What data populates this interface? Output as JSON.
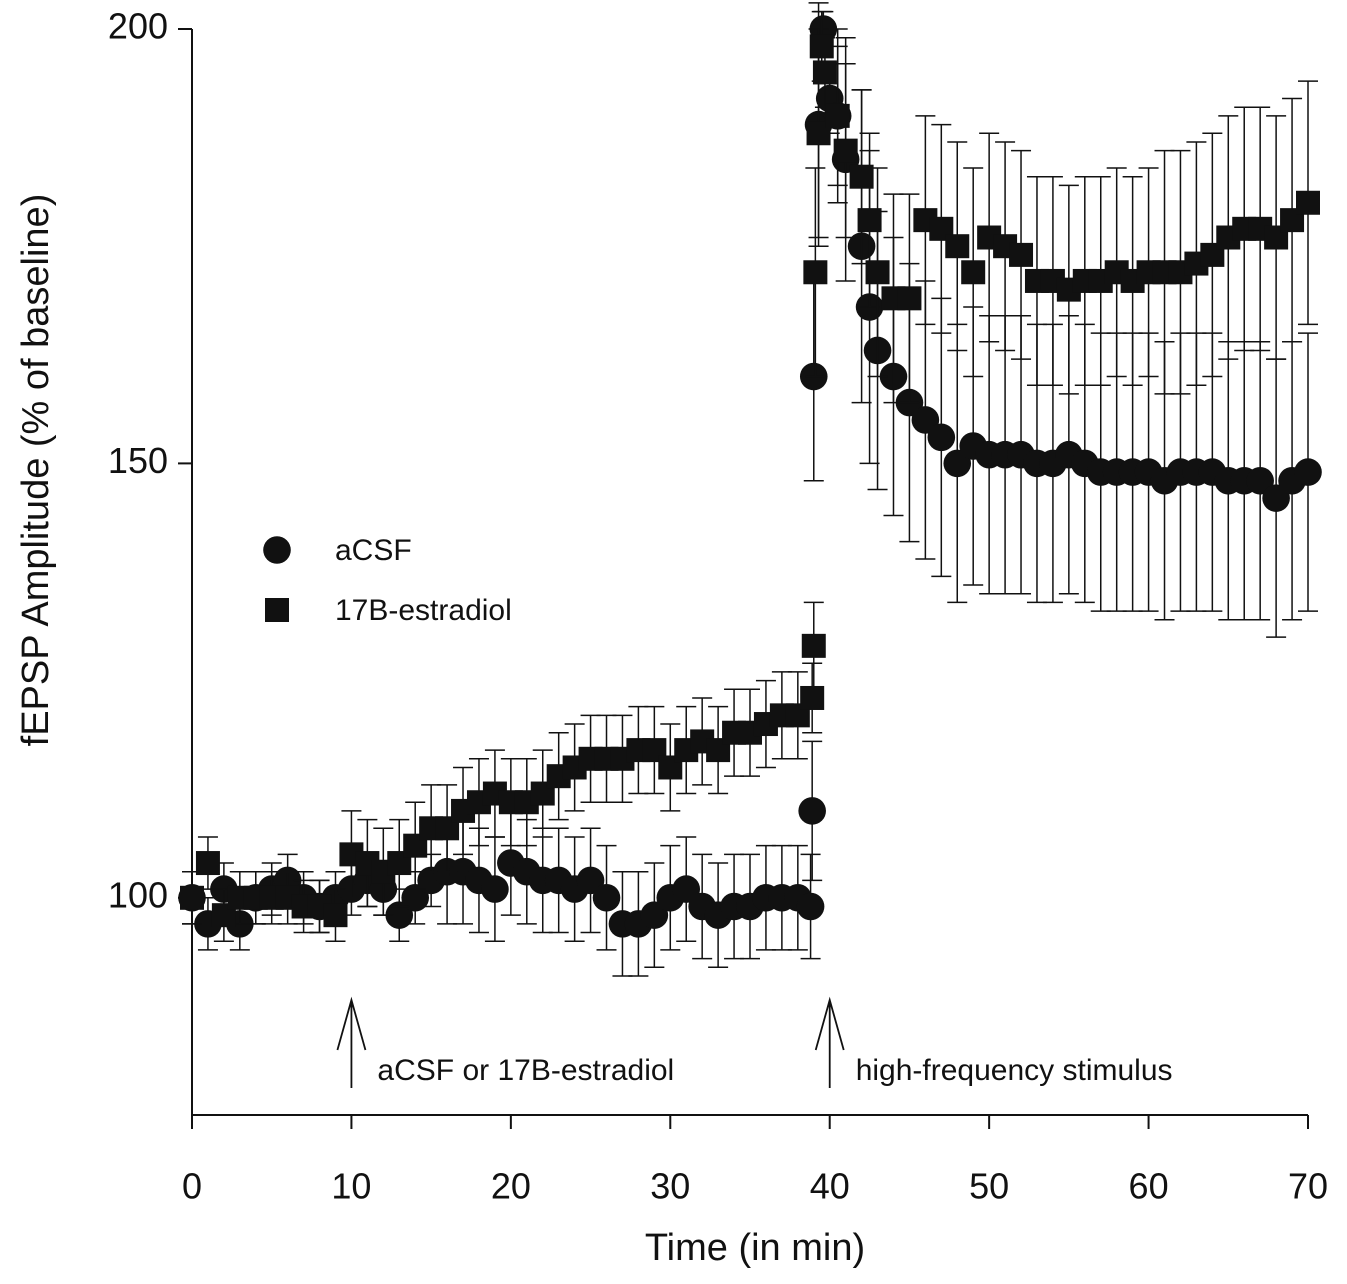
{
  "chart_data": {
    "type": "scatter",
    "x_label": "Time (in min)",
    "y_label": "fEPSP Amplitude (% of baseline)",
    "xlim": [
      0,
      70
    ],
    "xticks": [
      0,
      10,
      20,
      30,
      40,
      50,
      60,
      70
    ],
    "ylim": [
      75,
      200
    ],
    "yticks": [
      100,
      150,
      200
    ],
    "legend": "center left",
    "series": [
      {
        "name": "aCSF",
        "marker": "circle",
        "color": "#111111",
        "x": [
          0,
          1,
          2,
          3,
          4,
          5,
          6,
          7,
          8,
          9,
          10,
          11,
          12,
          13,
          14,
          15,
          16,
          17,
          18,
          19,
          20,
          21,
          22,
          23,
          24,
          25,
          26,
          27,
          28,
          29,
          30,
          31,
          32,
          33,
          34,
          35,
          36,
          37,
          38,
          38.8,
          38.9,
          39,
          39.3,
          39.6,
          40,
          40.5,
          41,
          42,
          42.5,
          43,
          44,
          45,
          46,
          47,
          48,
          49,
          50,
          51,
          52,
          53,
          54,
          55,
          56,
          57,
          58,
          59,
          60,
          61,
          62,
          63,
          64,
          65,
          66,
          67,
          68,
          69,
          70
        ],
        "values": [
          100,
          97,
          101,
          97,
          100,
          101,
          102,
          100,
          99,
          100,
          101,
          102,
          101,
          98,
          100,
          102,
          103,
          103,
          102,
          101,
          104,
          103,
          102,
          102,
          101,
          102,
          100,
          97,
          97,
          98,
          100,
          101,
          99,
          98,
          99,
          99,
          100,
          100,
          100,
          99,
          110,
          160,
          189,
          200,
          192,
          190,
          185,
          175,
          168,
          163,
          160,
          157,
          155,
          153,
          150,
          152,
          151,
          151,
          151,
          150,
          150,
          151,
          150,
          149,
          149,
          149,
          149,
          148,
          149,
          149,
          149,
          148,
          148,
          148,
          146,
          148,
          149
        ],
        "errors": [
          3,
          3,
          3,
          3,
          3,
          3,
          3,
          3,
          3,
          3,
          3,
          3,
          3,
          3,
          3,
          3,
          6,
          6,
          6,
          6,
          6,
          6,
          6,
          6,
          6,
          6,
          6,
          6,
          6,
          6,
          6,
          6,
          6,
          6,
          6,
          6,
          6,
          6,
          6,
          6,
          8,
          12,
          14,
          2,
          4,
          10,
          14,
          18,
          18,
          16,
          16,
          16,
          16,
          16,
          16,
          16,
          16,
          16,
          16,
          16,
          16,
          16,
          16,
          16,
          16,
          16,
          16,
          16,
          16,
          16,
          16,
          16,
          16,
          16,
          16,
          16,
          16
        ]
      },
      {
        "name": "17B-estradiol",
        "marker": "square",
        "color": "#111111",
        "x": [
          0,
          1,
          2,
          3,
          4,
          5,
          6,
          7,
          8,
          9,
          10,
          11,
          12,
          13,
          14,
          15,
          16,
          17,
          18,
          19,
          20,
          21,
          22,
          23,
          24,
          25,
          26,
          27,
          28,
          29,
          30,
          31,
          32,
          33,
          34,
          35,
          36,
          37,
          38,
          38.9,
          39,
          39.1,
          39.3,
          39.5,
          39.7,
          40.5,
          41,
          42,
          42.5,
          43,
          44,
          45,
          46,
          47,
          48,
          49,
          50,
          51,
          52,
          53,
          54,
          55,
          56,
          57,
          58,
          59,
          60,
          61,
          62,
          63,
          64,
          65,
          66,
          67,
          68,
          69,
          70
        ],
        "values": [
          100,
          104,
          98,
          100,
          100,
          100,
          100,
          99,
          99,
          98,
          105,
          104,
          103,
          104,
          106,
          108,
          108,
          110,
          111,
          112,
          111,
          111,
          112,
          114,
          115,
          116,
          116,
          116,
          117,
          117,
          115,
          117,
          118,
          117,
          119,
          119,
          120,
          121,
          121,
          123,
          129,
          172,
          188,
          198,
          195,
          190,
          186,
          183,
          178,
          172,
          169,
          169,
          178,
          177,
          175,
          172,
          176,
          175,
          174,
          171,
          171,
          170,
          171,
          171,
          172,
          171,
          172,
          172,
          172,
          173,
          174,
          176,
          177,
          177,
          176,
          178,
          180
        ],
        "errors": [
          3,
          3,
          3,
          3,
          3,
          3,
          3,
          3,
          3,
          3,
          5,
          5,
          5,
          5,
          5,
          5,
          5,
          5,
          5,
          5,
          5,
          5,
          5,
          5,
          5,
          5,
          5,
          5,
          5,
          5,
          5,
          5,
          5,
          5,
          5,
          5,
          5,
          5,
          5,
          4,
          5,
          12,
          12,
          4,
          4,
          8,
          10,
          10,
          10,
          12,
          12,
          12,
          12,
          12,
          12,
          12,
          12,
          12,
          12,
          12,
          12,
          12,
          12,
          12,
          12,
          12,
          12,
          14,
          14,
          14,
          14,
          14,
          14,
          14,
          14,
          14,
          14
        ]
      }
    ],
    "annotations": [
      {
        "text": "aCSF or 17B-estradiol",
        "x": 10
      },
      {
        "text": "high-frequency stimulus",
        "x": 40
      }
    ]
  }
}
